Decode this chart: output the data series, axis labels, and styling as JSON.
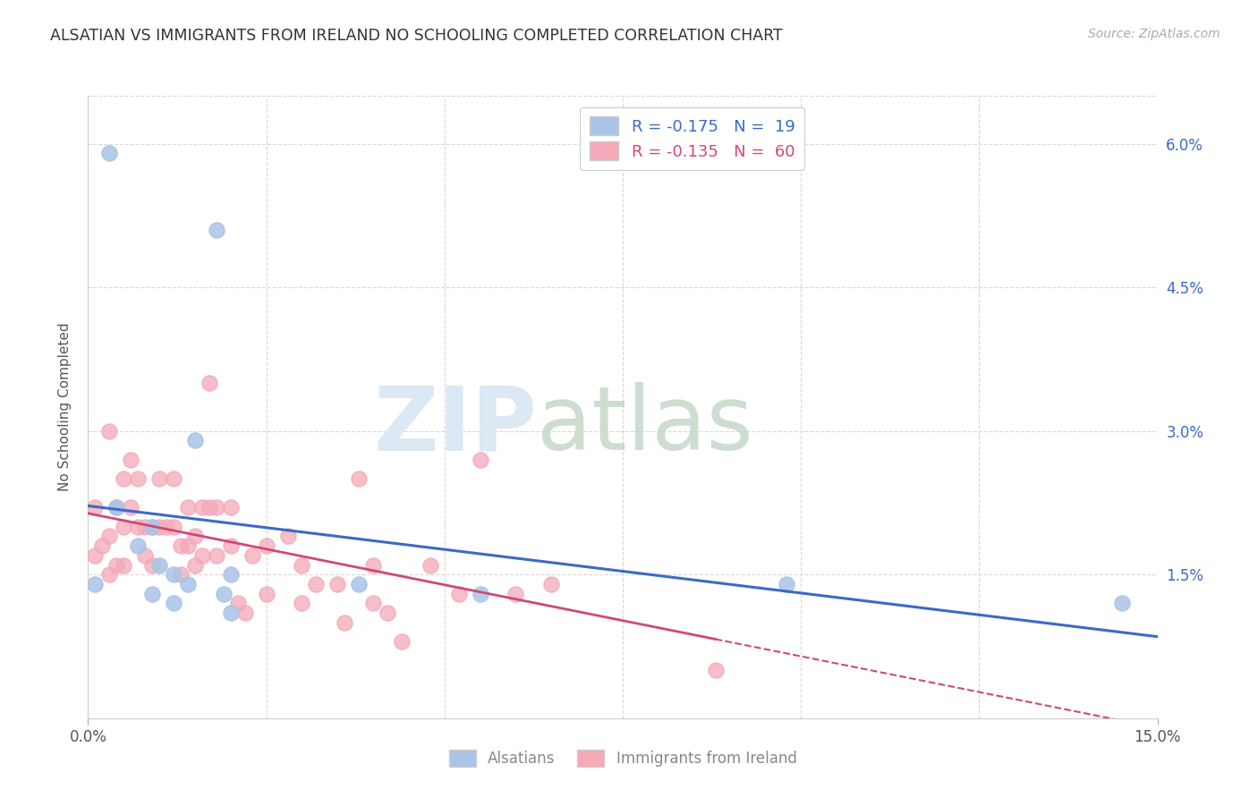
{
  "title": "ALSATIAN VS IMMIGRANTS FROM IRELAND NO SCHOOLING COMPLETED CORRELATION CHART",
  "source": "Source: ZipAtlas.com",
  "ylabel": "No Schooling Completed",
  "xmin": 0.0,
  "xmax": 0.15,
  "ymin": 0.0,
  "ymax": 0.065,
  "yticks": [
    0.015,
    0.03,
    0.045,
    0.06
  ],
  "ytick_labels": [
    "1.5%",
    "3.0%",
    "4.5%",
    "6.0%"
  ],
  "legend_label1": "R = -0.175   N =  19",
  "legend_label2": "R = -0.135   N =  60",
  "legend_bottom_label1": "Alsatians",
  "legend_bottom_label2": "Immigrants from Ireland",
  "alsatian_color": "#aac4e8",
  "ireland_color": "#f4a8b8",
  "alsatian_line_color": "#3a6bc4",
  "ireland_line_color": "#d04878",
  "background_color": "#ffffff",
  "grid_color": "#d8d8d8",
  "alsatian_x": [
    0.003,
    0.018,
    0.001,
    0.004,
    0.007,
    0.009,
    0.009,
    0.01,
    0.012,
    0.012,
    0.014,
    0.015,
    0.019,
    0.02,
    0.02,
    0.038,
    0.055,
    0.098,
    0.145
  ],
  "alsatian_y": [
    0.059,
    0.051,
    0.014,
    0.022,
    0.018,
    0.02,
    0.013,
    0.016,
    0.015,
    0.012,
    0.014,
    0.029,
    0.013,
    0.015,
    0.011,
    0.014,
    0.013,
    0.014,
    0.012
  ],
  "ireland_x": [
    0.001,
    0.001,
    0.002,
    0.003,
    0.003,
    0.003,
    0.004,
    0.004,
    0.005,
    0.005,
    0.005,
    0.006,
    0.006,
    0.007,
    0.007,
    0.008,
    0.008,
    0.009,
    0.009,
    0.01,
    0.01,
    0.011,
    0.012,
    0.012,
    0.013,
    0.013,
    0.014,
    0.014,
    0.015,
    0.015,
    0.016,
    0.016,
    0.017,
    0.017,
    0.018,
    0.018,
    0.02,
    0.02,
    0.021,
    0.022,
    0.023,
    0.025,
    0.025,
    0.028,
    0.03,
    0.03,
    0.032,
    0.035,
    0.036,
    0.038,
    0.04,
    0.04,
    0.042,
    0.044,
    0.048,
    0.052,
    0.055,
    0.06,
    0.065,
    0.088
  ],
  "ireland_y": [
    0.022,
    0.017,
    0.018,
    0.03,
    0.019,
    0.015,
    0.022,
    0.016,
    0.025,
    0.02,
    0.016,
    0.027,
    0.022,
    0.025,
    0.02,
    0.02,
    0.017,
    0.02,
    0.016,
    0.025,
    0.02,
    0.02,
    0.025,
    0.02,
    0.018,
    0.015,
    0.022,
    0.018,
    0.019,
    0.016,
    0.022,
    0.017,
    0.035,
    0.022,
    0.022,
    0.017,
    0.022,
    0.018,
    0.012,
    0.011,
    0.017,
    0.018,
    0.013,
    0.019,
    0.016,
    0.012,
    0.014,
    0.014,
    0.01,
    0.025,
    0.016,
    0.012,
    0.011,
    0.008,
    0.016,
    0.013,
    0.027,
    0.013,
    0.014,
    0.005
  ]
}
